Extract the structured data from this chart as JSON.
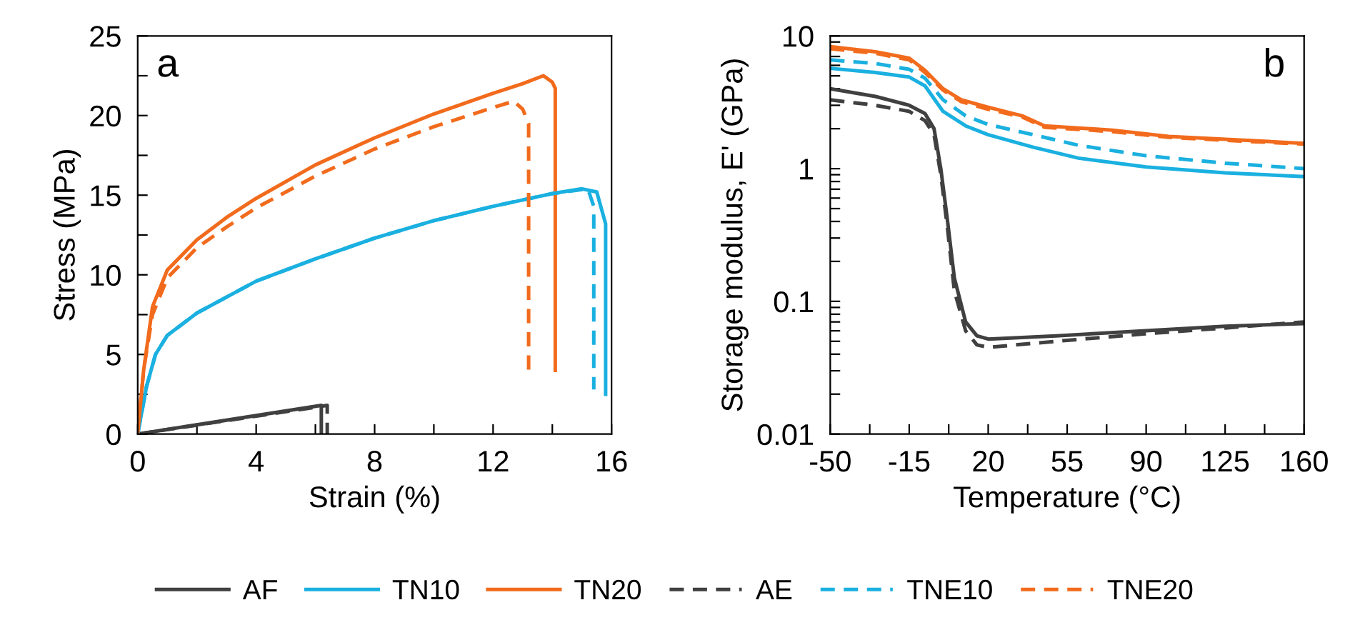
{
  "chart_data": [
    {
      "type": "line",
      "xlabel": "Strain (%)",
      "ylabel": "Stress (MPa)",
      "annotations": [
        "a"
      ],
      "legend": "bottom",
      "grid": false,
      "xlim": [
        0,
        16
      ],
      "xticks": [
        0,
        {
          "value": 2,
          "label": null
        },
        4,
        {
          "value": 6,
          "label": null
        },
        8,
        {
          "value": 10,
          "label": null
        },
        12,
        {
          "value": 14,
          "label": null
        },
        16
      ],
      "ylim": [
        0,
        25
      ],
      "yticks": [
        0,
        {
          "value": 2.5,
          "label": null
        },
        5,
        {
          "value": 7.5,
          "label": null
        },
        10,
        {
          "value": 12.5,
          "label": null
        },
        15,
        {
          "value": 17.5,
          "label": null
        },
        20,
        {
          "value": 22.5,
          "label": null
        },
        25
      ],
      "series": [
        {
          "name": "AF",
          "color": "#404040",
          "line_style": "solid",
          "x": [
            0,
            6.2,
            6.2
          ],
          "values": [
            0,
            1.8,
            0
          ]
        },
        {
          "name": "TN10",
          "color": "#1ab0e0",
          "line_style": "solid",
          "x": [
            0,
            0.3,
            0.6,
            1,
            2,
            4,
            6,
            8,
            10,
            12,
            14,
            15,
            15.5,
            15.8,
            15.8
          ],
          "values": [
            0,
            3,
            5,
            6.2,
            7.6,
            9.6,
            11,
            12.3,
            13.4,
            14.3,
            15.1,
            15.4,
            15.2,
            13.2,
            2.5
          ]
        },
        {
          "name": "TN20",
          "color": "#f26b1d",
          "line_style": "solid",
          "x": [
            0,
            0.2,
            0.5,
            1,
            2,
            3,
            4,
            6,
            8,
            10,
            12,
            13,
            13.7,
            14,
            14.1,
            14.1
          ],
          "values": [
            0,
            4,
            8,
            10.3,
            12.2,
            13.6,
            14.8,
            16.9,
            18.6,
            20.1,
            21.4,
            22,
            22.5,
            22.1,
            21.7,
            4
          ]
        },
        {
          "name": "AE",
          "color": "#404040",
          "line_style": "dashed",
          "x": [
            0,
            6.4,
            6.4
          ],
          "values": [
            0,
            1.8,
            0
          ]
        },
        {
          "name": "TNE10",
          "color": "#1ab0e0",
          "line_style": "dashed",
          "x": [
            0,
            0.3,
            0.6,
            1,
            2,
            4,
            6,
            8,
            10,
            12,
            14,
            15.2,
            15.4,
            15.4
          ],
          "values": [
            0,
            3,
            5,
            6.2,
            7.6,
            9.6,
            11,
            12.3,
            13.4,
            14.3,
            15.1,
            15.4,
            14.3,
            2.8
          ]
        },
        {
          "name": "TNE20",
          "color": "#f26b1d",
          "line_style": "dashed",
          "x": [
            0,
            0.2,
            0.5,
            1,
            2,
            3,
            4,
            6,
            8,
            10,
            12,
            12.7,
            13,
            13.2,
            13.2
          ],
          "values": [
            0,
            4,
            7.5,
            9.8,
            11.7,
            13,
            14.2,
            16.2,
            17.9,
            19.3,
            20.5,
            20.9,
            20.4,
            19.5,
            4
          ]
        }
      ]
    },
    {
      "type": "line",
      "xlabel": "Temperature (°C)",
      "ylabel": "Storage modulus, E' (GPa)",
      "annotations": [
        "b"
      ],
      "log": "y",
      "grid": false,
      "xlim": [
        -50,
        160
      ],
      "xticks": [
        -50,
        {
          "value": -32.5,
          "label": null
        },
        -15,
        {
          "value": 2.5,
          "label": null
        },
        20,
        {
          "value": 37.5,
          "label": null
        },
        55,
        {
          "value": 72.5,
          "label": null
        },
        90,
        {
          "value": 107.5,
          "label": null
        },
        125,
        {
          "value": 142.5,
          "label": null
        },
        160
      ],
      "ylim": [
        0.01,
        10
      ],
      "yticks": [
        0.01,
        {
          "value": 0.02,
          "label": null
        },
        {
          "value": 0.03,
          "label": null
        },
        {
          "value": 0.04,
          "label": null
        },
        {
          "value": 0.05,
          "label": null
        },
        {
          "value": 0.06,
          "label": null
        },
        {
          "value": 0.07,
          "label": null
        },
        {
          "value": 0.08,
          "label": null
        },
        {
          "value": 0.09,
          "label": null
        },
        0.1,
        {
          "value": 0.2,
          "label": null
        },
        {
          "value": 0.3,
          "label": null
        },
        {
          "value": 0.4,
          "label": null
        },
        {
          "value": 0.5,
          "label": null
        },
        {
          "value": 0.6,
          "label": null
        },
        {
          "value": 0.7,
          "label": null
        },
        {
          "value": 0.8,
          "label": null
        },
        {
          "value": 0.9,
          "label": null
        },
        1,
        {
          "value": 2,
          "label": null
        },
        {
          "value": 3,
          "label": null
        },
        {
          "value": 4,
          "label": null
        },
        {
          "value": 5,
          "label": null
        },
        {
          "value": 6,
          "label": null
        },
        {
          "value": 7,
          "label": null
        },
        {
          "value": 8,
          "label": null
        },
        {
          "value": 9,
          "label": null
        },
        10
      ],
      "series": [
        {
          "color": "#404040",
          "line_style": "solid",
          "x": [
            -50,
            -30,
            -15,
            -8,
            -4,
            -1,
            2,
            5,
            10,
            15,
            20,
            50,
            90,
            125,
            160
          ],
          "values": [
            4,
            3.5,
            3,
            2.6,
            2,
            1,
            0.4,
            0.15,
            0.07,
            0.055,
            0.052,
            0.055,
            0.06,
            0.065,
            0.068
          ]
        },
        {
          "color": "#1ab0e0",
          "line_style": "solid",
          "x": [
            -50,
            -30,
            -15,
            -8,
            0,
            10,
            20,
            40,
            60,
            90,
            125,
            160
          ],
          "values": [
            5.7,
            5.3,
            4.9,
            4.2,
            2.7,
            2.1,
            1.8,
            1.45,
            1.2,
            1.03,
            0.93,
            0.87
          ]
        },
        {
          "color": "#f26b1d",
          "line_style": "solid",
          "x": [
            -50,
            -30,
            -15,
            -8,
            0,
            8,
            20,
            35,
            45,
            55,
            75,
            100,
            130,
            160
          ],
          "values": [
            8.3,
            7.6,
            6.8,
            5.5,
            4,
            3.3,
            2.9,
            2.5,
            2.1,
            2.05,
            1.95,
            1.75,
            1.65,
            1.55
          ]
        },
        {
          "color": "#404040",
          "line_style": "dashed",
          "x": [
            -50,
            -30,
            -15,
            -8,
            -4,
            -1,
            2,
            5,
            10,
            15,
            20,
            50,
            90,
            125,
            160
          ],
          "values": [
            3.3,
            3,
            2.7,
            2.3,
            1.8,
            0.9,
            0.35,
            0.12,
            0.06,
            0.047,
            0.045,
            0.05,
            0.057,
            0.063,
            0.07
          ]
        },
        {
          "color": "#1ab0e0",
          "line_style": "dashed",
          "x": [
            -50,
            -30,
            -15,
            -8,
            0,
            10,
            20,
            40,
            60,
            90,
            125,
            160
          ],
          "values": [
            6.6,
            6.2,
            5.6,
            4.8,
            3.3,
            2.5,
            2.15,
            1.8,
            1.5,
            1.25,
            1.1,
            1
          ]
        },
        {
          "color": "#f26b1d",
          "line_style": "dashed",
          "x": [
            -50,
            -30,
            -15,
            -8,
            0,
            8,
            20,
            35,
            45,
            55,
            75,
            100,
            130,
            160
          ],
          "values": [
            8,
            7.4,
            6.6,
            5.3,
            3.9,
            3.2,
            2.8,
            2.45,
            2.05,
            2,
            1.9,
            1.72,
            1.62,
            1.53
          ]
        }
      ]
    }
  ]
}
